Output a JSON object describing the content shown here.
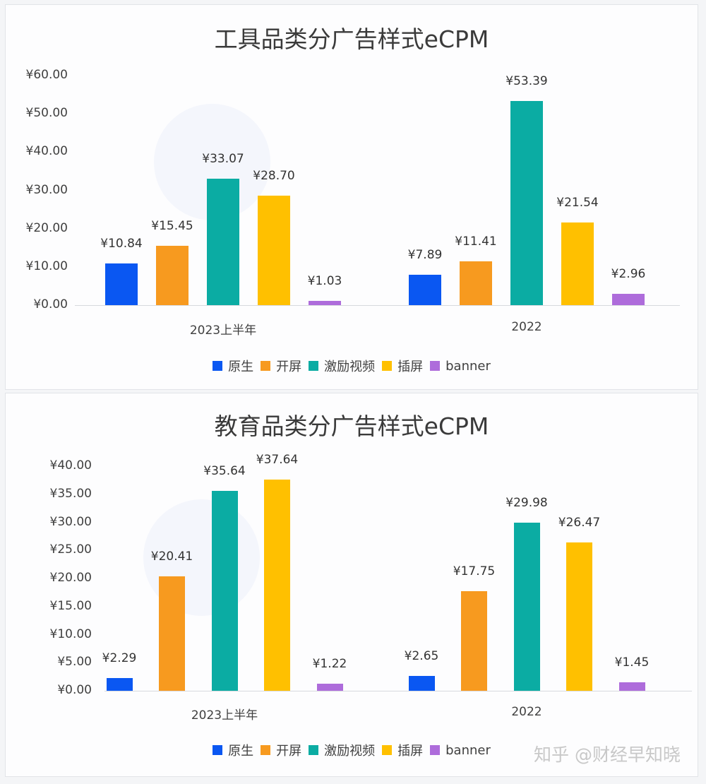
{
  "colors": {
    "原生": "#0a57f2",
    "开屏": "#f79a1f",
    "激励视频": "#0baca3",
    "插屏": "#ffc000",
    "banner": "#ae6cdb"
  },
  "legend": [
    {
      "label": "原生",
      "color": "#0a57f2"
    },
    {
      "label": "开屏",
      "color": "#f79a1f"
    },
    {
      "label": "激励视频",
      "color": "#0baca3"
    },
    {
      "label": "插屏",
      "color": "#ffc000"
    },
    {
      "label": "banner",
      "color": "#ae6cdb"
    }
  ],
  "watermark": "知乎 @财经早知晓",
  "chart_data": [
    {
      "type": "bar",
      "title": "工具品类分广告样式eCPM",
      "xlabel": "",
      "ylabel": "",
      "ylim": [
        0,
        60
      ],
      "yticks": [
        "¥0.00",
        "¥10.00",
        "¥20.00",
        "¥30.00",
        "¥40.00",
        "¥50.00",
        "¥60.00"
      ],
      "categories": [
        "2023上半年",
        "2022"
      ],
      "series": [
        {
          "name": "原生",
          "values": [
            10.84,
            7.89
          ],
          "labels": [
            "¥10.84",
            "¥7.89"
          ]
        },
        {
          "name": "开屏",
          "values": [
            15.45,
            11.41
          ],
          "labels": [
            "¥15.45",
            "¥11.41"
          ]
        },
        {
          "name": "激励视频",
          "values": [
            33.07,
            53.39
          ],
          "labels": [
            "¥33.07",
            "¥53.39"
          ]
        },
        {
          "name": "插屏",
          "values": [
            28.7,
            21.54
          ],
          "labels": [
            "¥28.70",
            "¥21.54"
          ]
        },
        {
          "name": "banner",
          "values": [
            1.03,
            2.96
          ],
          "labels": [
            "¥1.03",
            "¥2.96"
          ]
        }
      ],
      "grid": false,
      "legend_position": "bottom"
    },
    {
      "type": "bar",
      "title": "教育品类分广告样式eCPM",
      "xlabel": "",
      "ylabel": "",
      "ylim": [
        0,
        40
      ],
      "yticks": [
        "¥0.00",
        "¥5.00",
        "¥10.00",
        "¥15.00",
        "¥20.00",
        "¥25.00",
        "¥30.00",
        "¥35.00",
        "¥40.00"
      ],
      "categories": [
        "2023上半年",
        "2022"
      ],
      "series": [
        {
          "name": "原生",
          "values": [
            2.29,
            2.65
          ],
          "labels": [
            "¥2.29",
            "¥2.65"
          ]
        },
        {
          "name": "开屏",
          "values": [
            20.41,
            17.75
          ],
          "labels": [
            "¥20.41",
            "¥17.75"
          ]
        },
        {
          "name": "激励视频",
          "values": [
            35.64,
            29.98
          ],
          "labels": [
            "¥35.64",
            "¥29.98"
          ]
        },
        {
          "name": "插屏",
          "values": [
            37.64,
            26.47
          ],
          "labels": [
            "¥37.64",
            "¥26.47"
          ]
        },
        {
          "name": "banner",
          "values": [
            1.22,
            1.45
          ],
          "labels": [
            "¥1.22",
            "¥1.45"
          ]
        }
      ],
      "grid": false,
      "legend_position": "bottom"
    }
  ]
}
